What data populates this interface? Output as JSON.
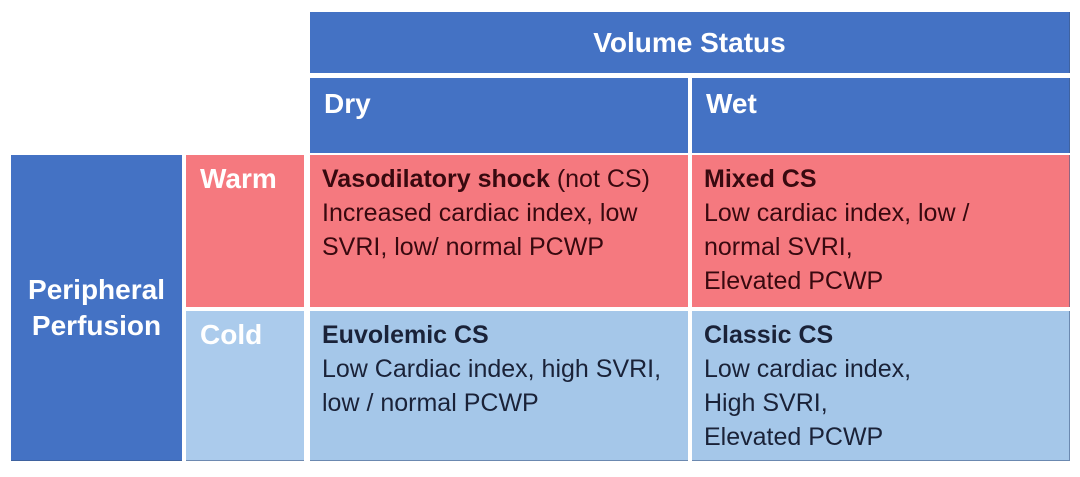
{
  "colors": {
    "header_blue": "#4472C4",
    "warm_pink": "#F5797F",
    "cold_light_blue": "#A5C7E9",
    "header_text": "#FFFFFF",
    "warm_cell_text": "#38090F",
    "cold_cell_text": "#1A2238"
  },
  "matrix": {
    "volume_status_header": "Volume Status",
    "dry_label": "Dry",
    "wet_label": "Wet",
    "perfusion_header": "Peripheral Perfusion",
    "warm_label": "Warm",
    "cold_label": "Cold",
    "cells": {
      "warm_dry": {
        "title": "Vasodilatory shock",
        "title_suffix": " (not CS)",
        "body": "Increased cardiac index, low\nSVRI, low/ normal PCWP"
      },
      "warm_wet": {
        "title": "Mixed CS",
        "title_suffix": "",
        "body": "Low cardiac index, low /\nnormal SVRI,\nElevated PCWP"
      },
      "cold_dry": {
        "title": "Euvolemic CS",
        "title_suffix": "",
        "body": "Low Cardiac index, high SVRI,\nlow / normal PCWP"
      },
      "cold_wet": {
        "title": "Classic CS",
        "title_suffix": "",
        "body": "Low cardiac index,\nHigh SVRI,\nElevated PCWP"
      }
    }
  }
}
